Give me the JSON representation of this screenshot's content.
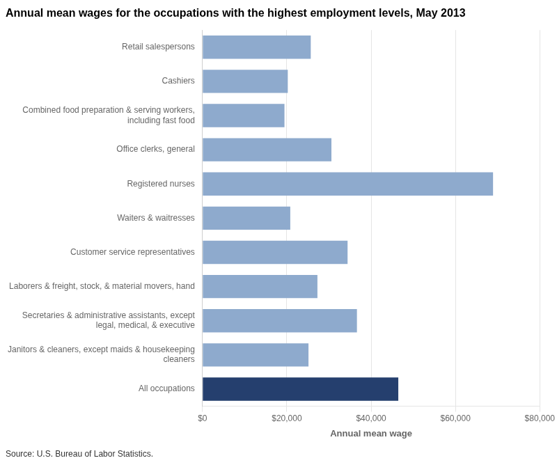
{
  "chart_data": {
    "type": "bar",
    "orientation": "horizontal",
    "title": "Annual mean wages for the occupations with the highest employment levels, May 2013",
    "source": "Source: U.S. Bureau of Labor Statistics.",
    "categories": [
      "All occupations",
      "Janitors & cleaners, except maids & housekeeping\ncleaners",
      "Secretaries & administrative assistants, except\nlegal, medical, & executive",
      "Laborers & freight, stock, & material movers, hand",
      "Customer service representatives",
      "Waiters & waitresses",
      "Registered nurses",
      "Office clerks, general",
      "Combined food preparation & serving workers,\nincluding fast food",
      "Cashiers",
      "Retail salespersons"
    ],
    "values": [
      46440,
      25140,
      36630,
      27260,
      34410,
      20820,
      68910,
      30580,
      19440,
      20230,
      25680
    ],
    "colors": [
      "#253f6e",
      "#8eaacd",
      "#8eaacd",
      "#8eaacd",
      "#8eaacd",
      "#8eaacd",
      "#8eaacd",
      "#8eaacd",
      "#8eaacd",
      "#8eaacd",
      "#8eaacd"
    ],
    "xlabel": "Annual mean wage",
    "xlim": [
      0,
      80000
    ],
    "xticks": [
      {
        "value": 0,
        "label": "$0"
      },
      {
        "value": 20000,
        "label": "$20,000"
      },
      {
        "value": 40000,
        "label": "$40,000"
      },
      {
        "value": 60000,
        "label": "$60,000"
      },
      {
        "value": 80000,
        "label": "$80,000"
      }
    ],
    "grid": true
  }
}
